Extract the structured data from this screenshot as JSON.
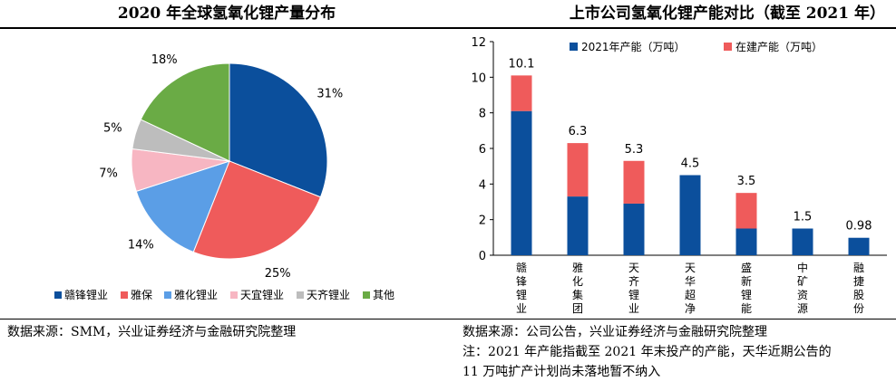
{
  "left_panel": {
    "title": "2020 年全球氢氧化锂产量分布",
    "source": "数据来源：SMM，兴业证券经济与金融研究院整理"
  },
  "right_panel": {
    "title": "上市公司氢氧化锂产能对比（截至 2021 年）",
    "source": "数据来源：公司公告，兴业证券经济与金融研究院整理",
    "note_line1": "注：2021 年产能指截至 2021 年末投产的产能，天华近期公告的",
    "note_line2": "11 万吨扩产计划尚未落地暂不纳入"
  },
  "chart_data": [
    {
      "type": "pie",
      "title": "2020 年全球氢氧化锂产量分布",
      "slices": [
        {
          "name": "赣锋锂业",
          "value": 31,
          "label": "31%",
          "color": "#0b4f9c"
        },
        {
          "name": "雅保",
          "value": 25,
          "label": "25%",
          "color": "#ef5b5b"
        },
        {
          "name": "雅化锂业",
          "value": 14,
          "label": "14%",
          "color": "#5b9ee6"
        },
        {
          "name": "天宜锂业",
          "value": 7,
          "label": "7%",
          "color": "#f7b6c2"
        },
        {
          "name": "天齐锂业",
          "value": 5,
          "label": "5%",
          "color": "#bdbdbd"
        },
        {
          "name": "其他",
          "value": 18,
          "label": "18%",
          "color": "#6aab45"
        }
      ],
      "legend_position": "bottom"
    },
    {
      "type": "bar",
      "stacked": true,
      "title": "上市公司氢氧化锂产能对比（截至 2021 年）",
      "categories": [
        "赣锋锂业",
        "雅化集团",
        "天齐锂业",
        "天华超净",
        "盛新锂能",
        "中矿资源",
        "融捷股份"
      ],
      "series": [
        {
          "name": "2021年产能（万吨）",
          "values": [
            8.1,
            3.3,
            2.9,
            4.5,
            1.5,
            1.5,
            0.98
          ],
          "color": "#0b4f9c"
        },
        {
          "name": "在建产能（万吨）",
          "values": [
            2.0,
            3.0,
            2.4,
            0,
            2.0,
            0,
            0
          ],
          "color": "#ef5b5b"
        }
      ],
      "total_labels": [
        "10.1",
        "6.3",
        "5.3",
        "4.5",
        "3.5",
        "1.5",
        "0.98"
      ],
      "ylim": [
        0,
        12
      ],
      "yticks": [
        "0",
        "2",
        "4",
        "6",
        "8",
        "10",
        "12"
      ],
      "legend_position": "top"
    }
  ]
}
